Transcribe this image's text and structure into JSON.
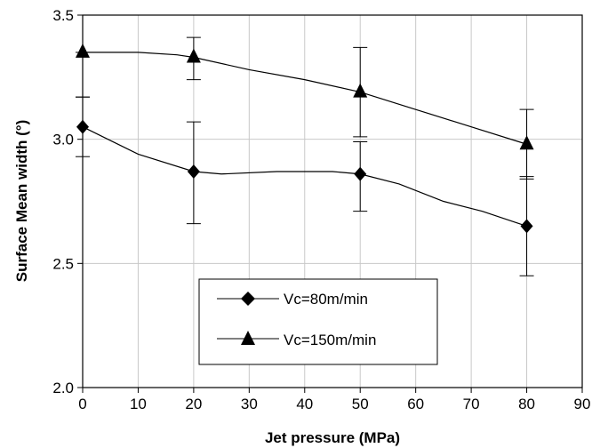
{
  "chart_data": {
    "type": "line",
    "title": "",
    "xlabel": "Jet pressure (MPa)",
    "ylabel": "Surface Mean width (°)",
    "xlim": [
      0,
      90
    ],
    "ylim": [
      2.0,
      3.5
    ],
    "xticks": [
      "0",
      "10",
      "20",
      "30",
      "40",
      "50",
      "60",
      "70",
      "80",
      "90"
    ],
    "yticks": [
      "2.0",
      "2.5",
      "3.0",
      "3.5"
    ],
    "grid": true,
    "legend_position": "bottom-center",
    "series": [
      {
        "name": "Vc=80m/min",
        "marker": "diamond",
        "x": [
          0,
          20,
          50,
          80
        ],
        "values": [
          3.05,
          2.87,
          2.86,
          2.65
        ],
        "error_upper": [
          3.17,
          3.07,
          2.99,
          2.85
        ],
        "error_lower": [
          2.93,
          2.66,
          2.71,
          2.45
        ],
        "curve_x": [
          0,
          10,
          20,
          25,
          35,
          45,
          50,
          57,
          65,
          72,
          80
        ],
        "curve_y": [
          3.05,
          2.94,
          2.87,
          2.86,
          2.87,
          2.87,
          2.86,
          2.82,
          2.75,
          2.71,
          2.65
        ]
      },
      {
        "name": "Vc=150m/min",
        "marker": "triangle",
        "x": [
          0,
          20,
          50,
          80
        ],
        "values": [
          3.35,
          3.33,
          3.19,
          2.98
        ],
        "error_upper": [
          3.35,
          3.41,
          3.37,
          3.12
        ],
        "error_lower": [
          3.17,
          3.24,
          3.01,
          2.84
        ],
        "curve_x": [
          0,
          10,
          17,
          20,
          30,
          40,
          50,
          60,
          70,
          80
        ],
        "curve_y": [
          3.35,
          3.35,
          3.34,
          3.33,
          3.28,
          3.24,
          3.19,
          3.12,
          3.05,
          2.98
        ]
      }
    ]
  }
}
